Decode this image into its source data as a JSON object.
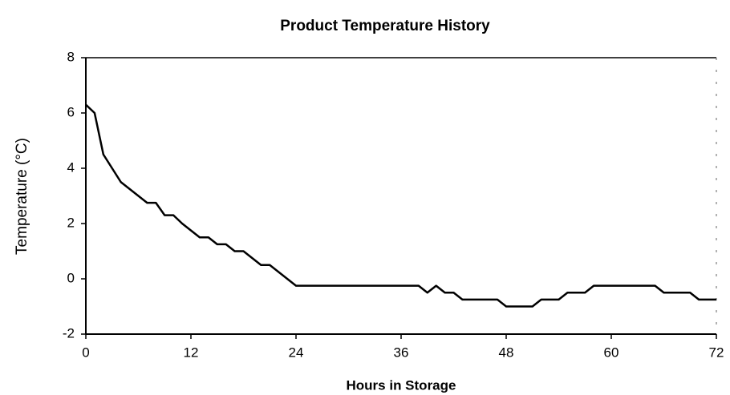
{
  "chart_data": {
    "type": "line",
    "title": "Product Temperature History",
    "x_label": "Hours in Storage",
    "y_label": "Temperature (°C)",
    "x": [
      0,
      1,
      2,
      3,
      4,
      5,
      6,
      7,
      8,
      9,
      10,
      11,
      12,
      13,
      14,
      15,
      16,
      17,
      18,
      19,
      20,
      21,
      22,
      23,
      24,
      25,
      26,
      27,
      28,
      29,
      30,
      31,
      32,
      33,
      34,
      35,
      36,
      37,
      38,
      39,
      40,
      41,
      42,
      43,
      44,
      45,
      46,
      47,
      48,
      49,
      50,
      51,
      52,
      53,
      54,
      55,
      56,
      57,
      58,
      59,
      60,
      61,
      62,
      63,
      64,
      65,
      66,
      67,
      68,
      69,
      70,
      71,
      72
    ],
    "series": [
      {
        "name": "Temperature",
        "color": "#000000",
        "values": [
          6.3,
          6.0,
          4.5,
          4.0,
          3.5,
          3.25,
          3.0,
          2.75,
          2.75,
          2.3,
          2.3,
          2.0,
          1.75,
          1.5,
          1.5,
          1.25,
          1.25,
          1.0,
          1.0,
          0.75,
          0.5,
          0.5,
          0.25,
          0,
          -0.25,
          -0.25,
          -0.25,
          -0.25,
          -0.25,
          -0.25,
          -0.25,
          -0.25,
          -0.25,
          -0.25,
          -0.25,
          -0.25,
          -0.25,
          -0.25,
          -0.25,
          -0.5,
          -0.25,
          -0.5,
          -0.5,
          -0.75,
          -0.75,
          -0.75,
          -0.75,
          -0.75,
          -1.0,
          -1.0,
          -1.0,
          -1.0,
          -0.75,
          -0.75,
          -0.75,
          -0.5,
          -0.5,
          -0.5,
          -0.25,
          -0.25,
          -0.25,
          -0.25,
          -0.25,
          -0.25,
          -0.25,
          -0.25,
          -0.5,
          -0.5,
          -0.5,
          -0.5,
          -0.75,
          -0.75,
          -0.75
        ]
      }
    ],
    "xlim": [
      0,
      72
    ],
    "xticks": [
      0,
      12,
      24,
      36,
      48,
      60,
      72
    ],
    "ylim": [
      -2,
      8
    ],
    "yticks": [
      -2,
      0,
      2,
      4,
      6,
      8
    ],
    "grid": false
  }
}
